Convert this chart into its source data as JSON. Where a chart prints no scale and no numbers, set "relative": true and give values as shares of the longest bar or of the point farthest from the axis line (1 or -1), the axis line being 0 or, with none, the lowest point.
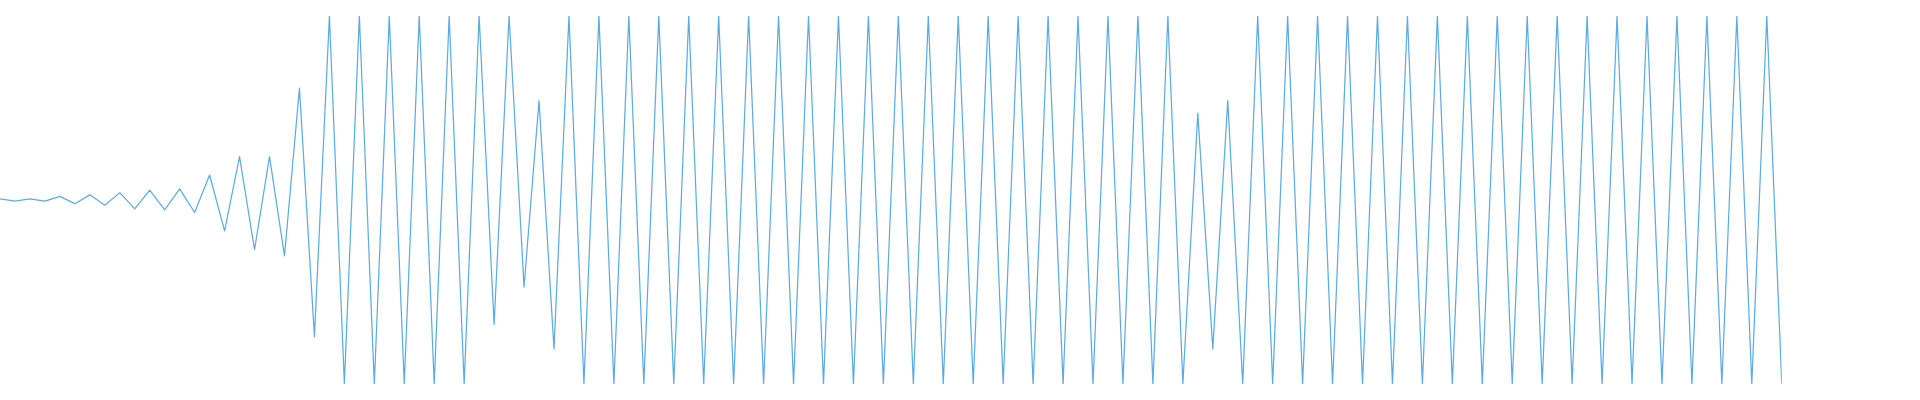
{
  "chart_data": {
    "type": "line",
    "relative": true,
    "tick_labels": false,
    "grid": false,
    "categories": [
      null,
      null,
      null,
      null,
      null,
      null,
      null,
      null,
      null,
      null,
      null,
      null,
      null,
      null,
      null,
      null,
      null,
      null,
      null,
      null,
      null,
      null,
      null,
      null,
      null,
      null,
      null,
      null,
      null,
      null,
      null,
      null,
      null,
      null,
      null,
      null,
      null,
      null,
      null,
      null,
      null,
      null,
      null,
      null,
      null,
      null,
      null,
      null,
      null,
      null,
      null,
      null,
      null,
      null,
      null,
      null,
      null,
      null,
      null,
      null,
      null,
      null,
      null,
      null,
      null,
      null,
      null,
      null,
      null,
      null,
      null,
      null,
      null,
      null,
      null,
      null,
      null,
      null,
      null,
      null,
      null,
      null,
      null,
      null,
      null,
      null,
      null,
      null,
      null,
      null,
      null,
      null,
      null,
      null,
      null,
      null,
      null,
      null,
      null,
      null,
      null,
      null,
      null,
      null,
      null,
      null,
      null,
      null,
      null,
      null,
      null,
      null,
      null,
      null,
      null,
      null,
      null,
      null,
      null,
      null
    ],
    "series": [
      {
        "color": "#5dabe3",
        "values": [
          0.503,
          0.497,
          0.503,
          0.497,
          0.51,
          0.49,
          0.514,
          0.486,
          0.52,
          0.476,
          0.527,
          0.473,
          0.53,
          0.466,
          0.568,
          0.416,
          0.618,
          0.365,
          0.618,
          0.348,
          0.804,
          0.128,
          1,
          0,
          1,
          0,
          1,
          0,
          1,
          0,
          1,
          0,
          1,
          0.162,
          1,
          0.264,
          0.77,
          0.095,
          1,
          0,
          1,
          0,
          1,
          0,
          1,
          0,
          1,
          0,
          1,
          0,
          1,
          0,
          1,
          0,
          1,
          0,
          1,
          0,
          1,
          0,
          1,
          0,
          1,
          0,
          1,
          0,
          1,
          0,
          1,
          0,
          1,
          0,
          1,
          0,
          1,
          0,
          1,
          0,
          1,
          0,
          0.736,
          0.095,
          0.77,
          0,
          1,
          0,
          1,
          0,
          1,
          0,
          1,
          0,
          1,
          0,
          1,
          0,
          1,
          0,
          1,
          0,
          1,
          0,
          1,
          0,
          1,
          0,
          1,
          0,
          1,
          0,
          1,
          0,
          1,
          0,
          1,
          0,
          1,
          0,
          1,
          0
        ]
      }
    ]
  }
}
